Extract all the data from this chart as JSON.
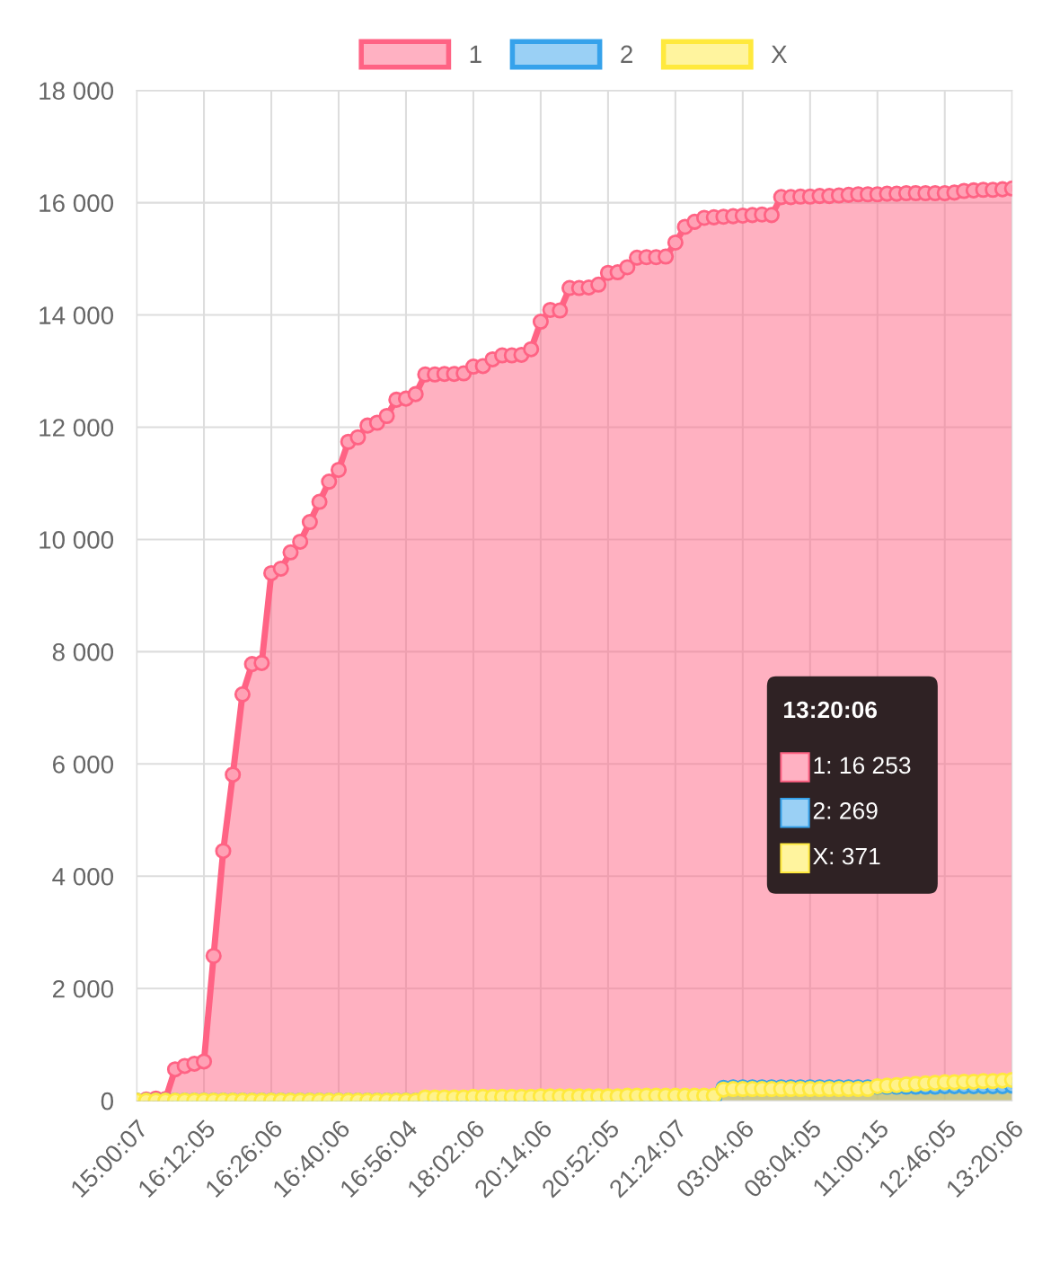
{
  "chart_data": {
    "type": "area",
    "categories": [
      "15:00:07",
      null,
      null,
      null,
      null,
      null,
      null,
      "16:12:05",
      null,
      null,
      null,
      null,
      null,
      null,
      "16:26:06",
      null,
      null,
      null,
      null,
      null,
      null,
      "16:40:06",
      null,
      null,
      null,
      null,
      null,
      null,
      "16:56:04",
      null,
      null,
      null,
      null,
      null,
      null,
      "18:02:06",
      null,
      null,
      null,
      null,
      null,
      null,
      "20:14:06",
      null,
      null,
      null,
      null,
      null,
      null,
      "20:52:05",
      null,
      null,
      null,
      null,
      null,
      null,
      "21:24:07",
      null,
      null,
      null,
      null,
      null,
      null,
      "03:04:06",
      null,
      null,
      null,
      null,
      null,
      null,
      "08:04:05",
      null,
      null,
      null,
      null,
      null,
      null,
      "11:00:15",
      null,
      null,
      null,
      null,
      null,
      null,
      "12:46:05",
      null,
      null,
      null,
      null,
      null,
      null,
      "13:20:06"
    ],
    "series": [
      {
        "name": "1",
        "color": "#ff6384",
        "values": [
          0,
          20,
          40,
          30,
          560,
          620,
          660,
          700,
          2580,
          4450,
          5810,
          7240,
          7780,
          7800,
          9400,
          9480,
          9770,
          9960,
          10310,
          10670,
          11030,
          11240,
          11740,
          11820,
          12030,
          12080,
          12200,
          12490,
          12510,
          12590,
          12940,
          12940,
          12950,
          12950,
          12960,
          13080,
          13090,
          13210,
          13280,
          13280,
          13290,
          13390,
          13880,
          14090,
          14080,
          14480,
          14480,
          14490,
          14540,
          14750,
          14760,
          14850,
          15020,
          15030,
          15030,
          15040,
          15290,
          15570,
          15660,
          15730,
          15740,
          15750,
          15760,
          15770,
          15780,
          15790,
          15780,
          16100,
          16100,
          16110,
          16110,
          16120,
          16120,
          16130,
          16140,
          16150,
          16150,
          16150,
          16160,
          16160,
          16170,
          16170,
          16170,
          16170,
          16170,
          16180,
          16210,
          16220,
          16230,
          16230,
          16240,
          16253
        ]
      },
      {
        "name": "2",
        "color": "#36a2eb",
        "values": [
          0,
          0,
          0,
          0,
          0,
          0,
          0,
          0,
          0,
          0,
          0,
          0,
          0,
          0,
          0,
          0,
          0,
          0,
          0,
          0,
          0,
          0,
          0,
          0,
          0,
          0,
          0,
          0,
          0,
          0,
          0,
          0,
          0,
          0,
          0,
          0,
          0,
          0,
          0,
          0,
          0,
          10,
          10,
          10,
          10,
          10,
          20,
          20,
          20,
          20,
          20,
          20,
          20,
          20,
          20,
          30,
          30,
          30,
          30,
          30,
          30,
          230,
          240,
          240,
          240,
          240,
          240,
          240,
          240,
          240,
          240,
          240,
          240,
          240,
          240,
          240,
          240,
          250,
          250,
          250,
          250,
          250,
          250,
          250,
          260,
          260,
          260,
          260,
          260,
          260,
          260,
          269
        ]
      },
      {
        "name": "X",
        "color": "#ffe93d",
        "values": [
          0,
          0,
          0,
          0,
          0,
          0,
          0,
          0,
          0,
          0,
          0,
          0,
          0,
          0,
          0,
          0,
          0,
          0,
          0,
          0,
          0,
          0,
          0,
          0,
          0,
          0,
          0,
          0,
          0,
          0,
          60,
          60,
          60,
          60,
          60,
          70,
          70,
          70,
          70,
          70,
          70,
          70,
          80,
          80,
          80,
          80,
          80,
          80,
          80,
          80,
          80,
          90,
          90,
          90,
          90,
          90,
          90,
          90,
          90,
          90,
          90,
          200,
          210,
          210,
          210,
          210,
          210,
          210,
          210,
          210,
          210,
          210,
          210,
          210,
          210,
          210,
          210,
          260,
          270,
          280,
          290,
          300,
          310,
          320,
          330,
          330,
          340,
          340,
          350,
          350,
          360,
          371
        ]
      }
    ],
    "ylim": [
      0,
      18000
    ],
    "yticks": [
      {
        "value": 0,
        "label": "0"
      },
      {
        "value": 2000,
        "label": "2 000"
      },
      {
        "value": 4000,
        "label": "4 000"
      },
      {
        "value": 6000,
        "label": "6 000"
      },
      {
        "value": 8000,
        "label": "8 000"
      },
      {
        "value": 10000,
        "label": "10 000"
      },
      {
        "value": 12000,
        "label": "12 000"
      },
      {
        "value": 14000,
        "label": "14 000"
      },
      {
        "value": 16000,
        "label": "16 000"
      },
      {
        "value": 18000,
        "label": "18 000"
      }
    ],
    "grid": true,
    "legend": "top",
    "marker": "circle",
    "line_style": "solid",
    "annotations": [
      "13:20:06",
      "1: 16 253",
      "2: 269",
      "X: 371"
    ]
  }
}
